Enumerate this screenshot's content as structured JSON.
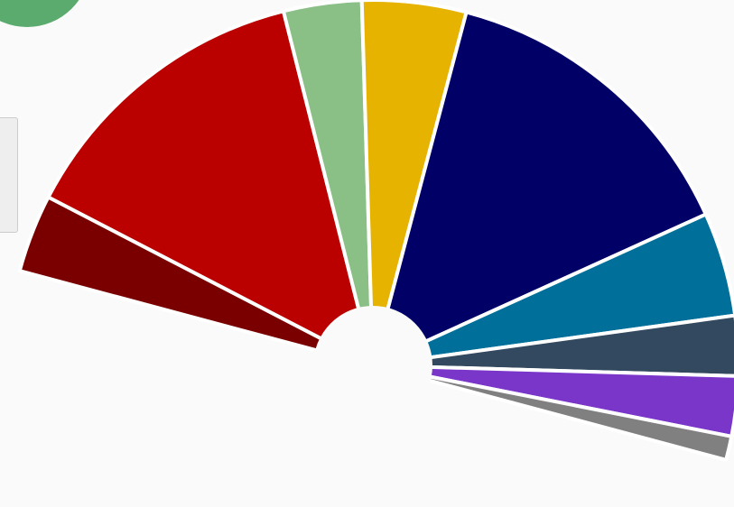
{
  "chart_data": {
    "type": "pie",
    "subtype": "semicircle-parliament",
    "title": "",
    "legend": "none",
    "slices": [
      {
        "value": 6.9,
        "color": "#7a0000"
      },
      {
        "value": 26.9,
        "color": "#bb0000"
      },
      {
        "value": 6.9,
        "color": "#8abf86"
      },
      {
        "value": 9.2,
        "color": "#e6b400"
      },
      {
        "value": 28.2,
        "color": "#000066"
      },
      {
        "value": 9.2,
        "color": "#006f9a"
      },
      {
        "value": 5.3,
        "color": "#33495f"
      },
      {
        "value": 5.3,
        "color": "#7a36c9"
      },
      {
        "value": 2.1,
        "color": "#808080"
      }
    ]
  },
  "ui": {
    "background_color": "#fafafa",
    "badge_color": "#5bab6e",
    "separator_color": "#ffffff"
  }
}
